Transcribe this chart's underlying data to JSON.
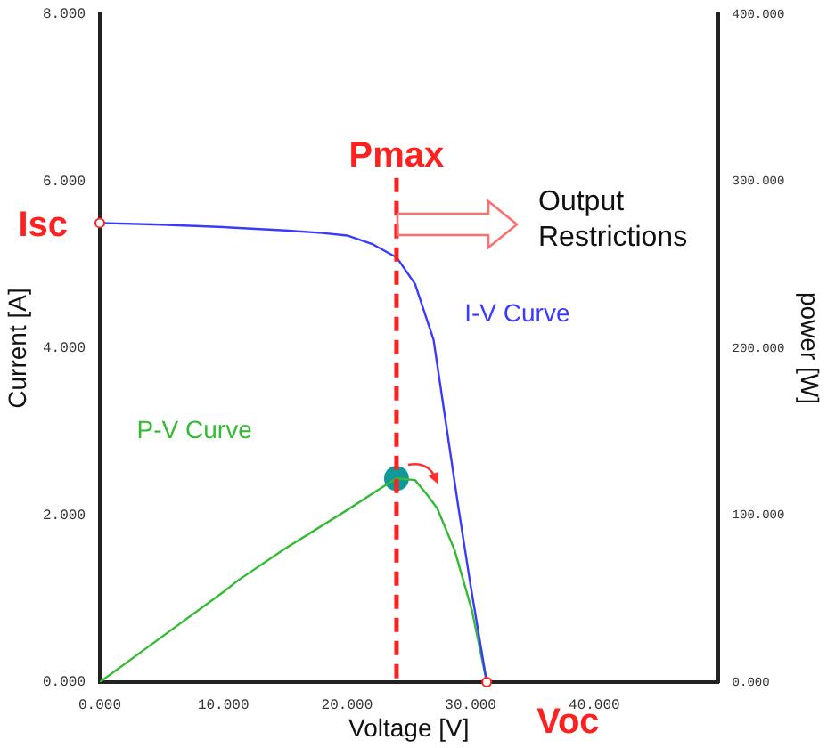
{
  "chart_data": {
    "type": "line",
    "xlabel": "Voltage [V]",
    "ylabel": "Current [A]",
    "y2label": "power [W]",
    "xlim": [
      0,
      50
    ],
    "xticks": [
      {
        "value": 0,
        "label": "0.000"
      },
      {
        "value": 10,
        "label": "10.000"
      },
      {
        "value": 20,
        "label": "20.000"
      },
      {
        "value": 30,
        "label": "30.000"
      },
      {
        "value": 40,
        "label": "40.000"
      }
    ],
    "ylim": [
      0,
      8
    ],
    "yticks": [
      {
        "value": 0,
        "label": "0.000"
      },
      {
        "value": 2,
        "label": "2.000"
      },
      {
        "value": 4,
        "label": "4.000"
      },
      {
        "value": 6,
        "label": "6.000"
      },
      {
        "value": 8,
        "label": "8.000"
      }
    ],
    "y2lim": [
      0,
      400
    ],
    "y2ticks": [
      {
        "value": 0,
        "label": "0.000"
      },
      {
        "value": 100,
        "label": "100.000"
      },
      {
        "value": 200,
        "label": "200.000"
      },
      {
        "value": 300,
        "label": "300.000"
      },
      {
        "value": 400,
        "label": "400.000"
      }
    ],
    "series": [
      {
        "name": "I-V Curve",
        "type": "line",
        "color": "#3a3aff",
        "x": [
          0,
          5,
          10,
          15,
          18,
          20,
          22,
          23.6,
          24,
          25.5,
          27,
          28,
          29,
          30,
          31.3
        ],
        "values": [
          5.5,
          5.48,
          5.45,
          5.41,
          5.38,
          5.35,
          5.25,
          5.12,
          5.09,
          4.77,
          4.1,
          3.1,
          2.1,
          1.15,
          0
        ]
      },
      {
        "name": "P-V Curve",
        "type": "line",
        "axis": "y2",
        "color": "#33bb33",
        "x": [
          0,
          5,
          10,
          11.2,
          15,
          20,
          22.7,
          24,
          25.5,
          26.5,
          27.3,
          28.7,
          30.1,
          31.3
        ],
        "values": [
          0,
          27,
          54,
          61,
          80,
          103,
          116,
          122,
          121,
          112,
          104,
          79,
          43,
          0
        ]
      },
      {
        "type": "scatter",
        "axis": "y2",
        "marker": "circle",
        "color": "#119999",
        "x": [
          24
        ],
        "values": [
          122
        ]
      }
    ],
    "ref_lines": [
      {
        "axis": "x",
        "value": 24,
        "label": "Pmax",
        "color": "#ff2020",
        "line_style": "dashed"
      }
    ],
    "annotations": [
      "Output Restrictions",
      {
        "text": "Isc",
        "x": 0,
        "y": 5.5
      },
      {
        "text": "Voc",
        "x": 31.3,
        "y": 0
      }
    ],
    "grid": false,
    "legend": false,
    "marker": "none",
    "line_style": "solid"
  }
}
